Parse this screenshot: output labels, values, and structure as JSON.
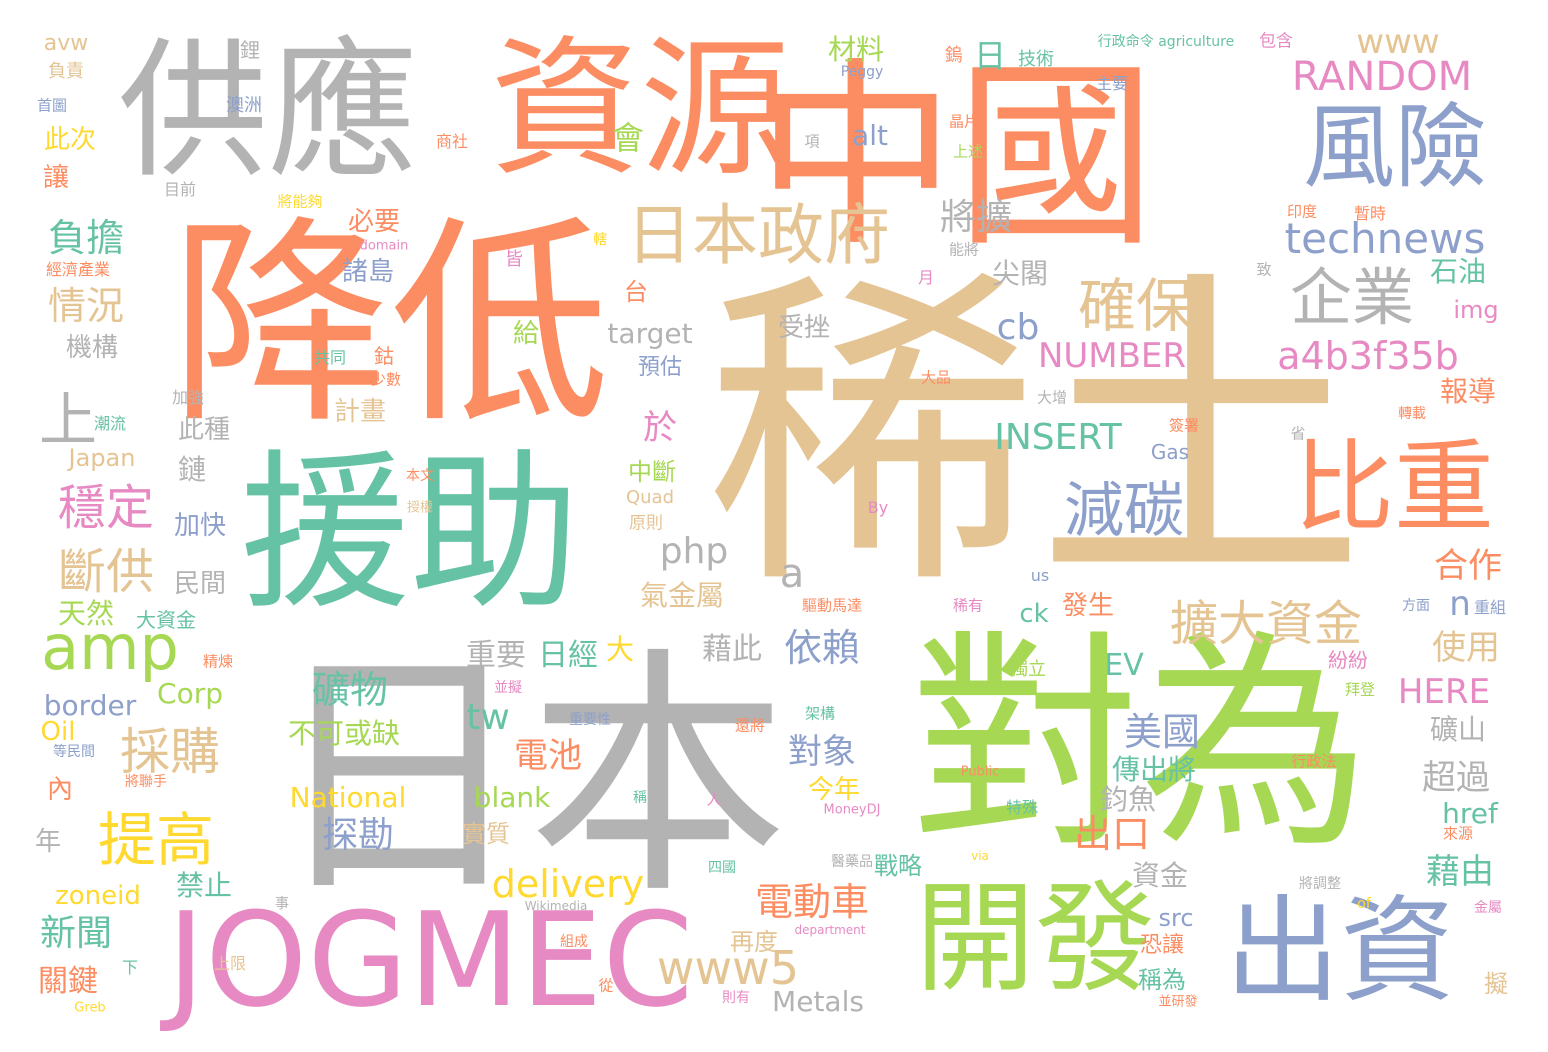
{
  "palette": {
    "orange": "#FC8D62",
    "tan": "#E5C494",
    "gray": "#B3B3B3",
    "teal": "#66C2A5",
    "green": "#A6D854",
    "blue": "#8DA0CB",
    "pink": "#E78AC3",
    "yellow": "#FFD92F"
  },
  "words": [
    {
      "text": "稀土",
      "color": "tan"
    },
    {
      "text": "中國",
      "color": "orange"
    },
    {
      "text": "降低",
      "color": "orange"
    },
    {
      "text": "日本",
      "color": "gray"
    },
    {
      "text": "對為",
      "color": "green"
    },
    {
      "text": "援助",
      "color": "teal"
    },
    {
      "text": "資源",
      "color": "orange"
    },
    {
      "text": "供應",
      "color": "gray"
    },
    {
      "text": "JOGMEC",
      "color": "pink"
    },
    {
      "text": "開發",
      "color": "green"
    },
    {
      "text": "出資",
      "color": "blue"
    },
    {
      "text": "風險",
      "color": "blue"
    },
    {
      "text": "比重",
      "color": "orange"
    },
    {
      "text": "日本政府",
      "color": "tan"
    },
    {
      "text": "企業",
      "color": "gray"
    },
    {
      "text": "確保",
      "color": "tan"
    },
    {
      "text": "減碳",
      "color": "blue"
    },
    {
      "text": "technews",
      "color": "blue"
    },
    {
      "text": "RANDOM",
      "color": "pink"
    },
    {
      "text": "www",
      "color": "tan"
    },
    {
      "text": "a4b3f35b",
      "color": "pink"
    },
    {
      "text": "NUMBER",
      "color": "pink"
    },
    {
      "text": "INSERT",
      "color": "teal"
    },
    {
      "text": "擴大資金",
      "color": "tan"
    },
    {
      "text": "amp",
      "color": "green"
    },
    {
      "text": "www5",
      "color": "tan"
    },
    {
      "text": "提高",
      "color": "yellow"
    },
    {
      "text": "採購",
      "color": "tan"
    },
    {
      "text": "穩定",
      "color": "pink"
    },
    {
      "text": "斷供",
      "color": "tan"
    },
    {
      "text": "負擔",
      "color": "teal"
    },
    {
      "text": "情況",
      "color": "tan"
    },
    {
      "text": "上",
      "color": "gray"
    },
    {
      "text": "php",
      "color": "gray"
    },
    {
      "text": "a",
      "color": "gray"
    },
    {
      "text": "cb",
      "color": "blue"
    },
    {
      "text": "將擴",
      "color": "gray"
    },
    {
      "text": "delivery",
      "color": "yellow"
    },
    {
      "text": "電動車",
      "color": "orange"
    },
    {
      "text": "礦物",
      "color": "teal"
    },
    {
      "text": "不可或缺",
      "color": "green"
    },
    {
      "text": "National",
      "color": "yellow"
    },
    {
      "text": "探勘",
      "color": "blue"
    },
    {
      "text": "blank",
      "color": "green"
    },
    {
      "text": "tw",
      "color": "teal"
    },
    {
      "text": "依賴",
      "color": "blue"
    },
    {
      "text": "EV",
      "color": "teal"
    },
    {
      "text": "美國",
      "color": "blue"
    },
    {
      "text": "HERE",
      "color": "pink"
    },
    {
      "text": "合作",
      "color": "orange"
    },
    {
      "text": "使用",
      "color": "tan"
    },
    {
      "text": "超過",
      "color": "gray"
    },
    {
      "text": "藉由",
      "color": "teal"
    },
    {
      "text": "出口",
      "color": "orange"
    },
    {
      "text": "對象",
      "color": "blue"
    },
    {
      "text": "電池",
      "color": "orange"
    },
    {
      "text": "日經",
      "color": "teal"
    },
    {
      "text": "重要",
      "color": "gray"
    },
    {
      "text": "藉此",
      "color": "gray"
    },
    {
      "text": "新聞",
      "color": "teal"
    },
    {
      "text": "關鍵",
      "color": "orange"
    },
    {
      "text": "天然",
      "color": "green"
    },
    {
      "text": "border",
      "color": "blue"
    },
    {
      "text": "Corp",
      "color": "green"
    },
    {
      "text": "Oil",
      "color": "yellow"
    },
    {
      "text": "zoneid",
      "color": "yellow"
    },
    {
      "text": "禁止",
      "color": "teal"
    },
    {
      "text": "Metals",
      "color": "gray"
    },
    {
      "text": "再度",
      "color": "tan"
    },
    {
      "text": "戰略",
      "color": "teal"
    },
    {
      "text": "資金",
      "color": "gray"
    },
    {
      "text": "鈞魚",
      "color": "gray"
    },
    {
      "text": "傳出將",
      "color": "teal"
    },
    {
      "text": "礦山",
      "color": "gray"
    },
    {
      "text": "href",
      "color": "teal"
    },
    {
      "text": "石油",
      "color": "teal"
    },
    {
      "text": "報導",
      "color": "orange"
    },
    {
      "text": "img",
      "color": "pink"
    },
    {
      "text": "alt",
      "color": "blue"
    },
    {
      "text": "target",
      "color": "gray"
    },
    {
      "text": "日",
      "color": "teal"
    },
    {
      "text": "材料",
      "color": "green"
    },
    {
      "text": "會",
      "color": "green"
    },
    {
      "text": "必要",
      "color": "orange"
    },
    {
      "text": "諸島",
      "color": "blue"
    },
    {
      "text": "尖閣",
      "color": "gray"
    },
    {
      "text": "受挫",
      "color": "gray"
    },
    {
      "text": "計畫",
      "color": "tan"
    },
    {
      "text": "此種",
      "color": "gray"
    },
    {
      "text": "鏈",
      "color": "gray"
    },
    {
      "text": "加快",
      "color": "blue"
    },
    {
      "text": "民間",
      "color": "gray"
    },
    {
      "text": "機構",
      "color": "gray"
    },
    {
      "text": "此次",
      "color": "yellow"
    },
    {
      "text": "讓",
      "color": "orange"
    },
    {
      "text": "avw",
      "color": "tan"
    },
    {
      "text": "Japan",
      "color": "tan"
    },
    {
      "text": "於",
      "color": "pink"
    },
    {
      "text": "中斷",
      "color": "green"
    },
    {
      "text": "n",
      "color": "blue"
    },
    {
      "text": "ck",
      "color": "teal"
    },
    {
      "text": "發生",
      "color": "orange"
    },
    {
      "text": "src",
      "color": "blue"
    },
    {
      "text": "稱為",
      "color": "teal"
    },
    {
      "text": "今年",
      "color": "yellow"
    },
    {
      "text": "實質",
      "color": "tan"
    },
    {
      "text": "年",
      "color": "gray"
    },
    {
      "text": "內",
      "color": "orange"
    },
    {
      "text": "大",
      "color": "yellow"
    },
    {
      "text": "氣金屬",
      "color": "tan"
    },
    {
      "text": "給",
      "color": "green"
    },
    {
      "text": "台",
      "color": "orange"
    },
    {
      "text": "預估",
      "color": "blue"
    },
    {
      "text": "大資金",
      "color": "teal"
    },
    {
      "text": "Gas",
      "color": "blue"
    },
    {
      "text": "恐讓",
      "color": "orange"
    },
    {
      "text": "擬",
      "color": "tan"
    },
    {
      "text": "鋰",
      "color": "gray"
    },
    {
      "text": "負責",
      "color": "tan"
    },
    {
      "text": "澳洲",
      "color": "blue"
    },
    {
      "text": "首圖",
      "color": "blue"
    },
    {
      "text": "商社",
      "color": "orange"
    },
    {
      "text": "目前",
      "color": "gray"
    },
    {
      "text": "將能夠",
      "color": "yellow"
    },
    {
      "text": "domain",
      "color": "pink"
    },
    {
      "text": "經濟產業",
      "color": "orange"
    },
    {
      "text": "皆",
      "color": "pink"
    },
    {
      "text": "共同",
      "color": "teal"
    },
    {
      "text": "鈷",
      "color": "orange"
    },
    {
      "text": "少數",
      "color": "orange"
    },
    {
      "text": "加強",
      "color": "gray"
    },
    {
      "text": "潮流",
      "color": "teal"
    },
    {
      "text": "Quad",
      "color": "tan"
    },
    {
      "text": "原則",
      "color": "tan"
    },
    {
      "text": "本文",
      "color": "orange"
    },
    {
      "text": "授權",
      "color": "tan"
    },
    {
      "text": "By",
      "color": "pink"
    },
    {
      "text": "驅動馬達",
      "color": "orange"
    },
    {
      "text": "稀有",
      "color": "pink"
    },
    {
      "text": "us",
      "color": "blue"
    },
    {
      "text": "方面",
      "color": "blue"
    },
    {
      "text": "重組",
      "color": "blue"
    },
    {
      "text": "精煉",
      "color": "orange"
    },
    {
      "text": "並擬",
      "color": "pink"
    },
    {
      "text": "紛紛",
      "color": "pink"
    },
    {
      "text": "獨立",
      "color": "green"
    },
    {
      "text": "拜登",
      "color": "green"
    },
    {
      "text": "行政法",
      "color": "orange"
    },
    {
      "text": "來源",
      "color": "orange"
    },
    {
      "text": "Public",
      "color": "orange"
    },
    {
      "text": "特殊",
      "color": "teal"
    },
    {
      "text": "MoneyDJ",
      "color": "pink"
    },
    {
      "text": "稱",
      "color": "teal"
    },
    {
      "text": "人",
      "color": "pink"
    },
    {
      "text": "重要性",
      "color": "blue"
    },
    {
      "text": "還將",
      "color": "orange"
    },
    {
      "text": "架構",
      "color": "teal"
    },
    {
      "text": "等民間",
      "color": "blue"
    },
    {
      "text": "將聯手",
      "color": "orange"
    },
    {
      "text": "Wikimedia",
      "color": "gray"
    },
    {
      "text": "醫藥品",
      "color": "gray"
    },
    {
      "text": "via",
      "color": "yellow"
    },
    {
      "text": "四國",
      "color": "teal"
    },
    {
      "text": "department",
      "color": "pink"
    },
    {
      "text": "組成",
      "color": "orange"
    },
    {
      "text": "上限",
      "color": "tan"
    },
    {
      "text": "則有",
      "color": "pink"
    },
    {
      "text": "從",
      "color": "orange"
    },
    {
      "text": "Greb",
      "color": "yellow"
    },
    {
      "text": "下",
      "color": "teal"
    },
    {
      "text": "事",
      "color": "gray"
    },
    {
      "text": "並研發",
      "color": "orange"
    },
    {
      "text": "of",
      "color": "yellow"
    },
    {
      "text": "將調整",
      "color": "gray"
    },
    {
      "text": "金屬",
      "color": "pink"
    },
    {
      "text": "行政命令 agriculture",
      "color": "teal"
    },
    {
      "text": "包含",
      "color": "pink"
    },
    {
      "text": "技術",
      "color": "teal"
    },
    {
      "text": "鎢",
      "color": "orange"
    },
    {
      "text": "Peggy",
      "color": "blue"
    },
    {
      "text": "主要",
      "color": "blue"
    },
    {
      "text": "晶片",
      "color": "orange"
    },
    {
      "text": "上述",
      "color": "green"
    },
    {
      "text": "項",
      "color": "gray"
    },
    {
      "text": "暫時",
      "color": "orange"
    },
    {
      "text": "印度",
      "color": "orange"
    },
    {
      "text": "能將",
      "color": "gray"
    },
    {
      "text": "月",
      "color": "pink"
    },
    {
      "text": "致",
      "color": "gray"
    },
    {
      "text": "省",
      "color": "gray"
    },
    {
      "text": "轉載",
      "color": "orange"
    },
    {
      "text": "簽署",
      "color": "orange"
    },
    {
      "text": "大增",
      "color": "gray"
    },
    {
      "text": "大品",
      "color": "orange"
    },
    {
      "text": "轄",
      "color": "yellow"
    }
  ]
}
